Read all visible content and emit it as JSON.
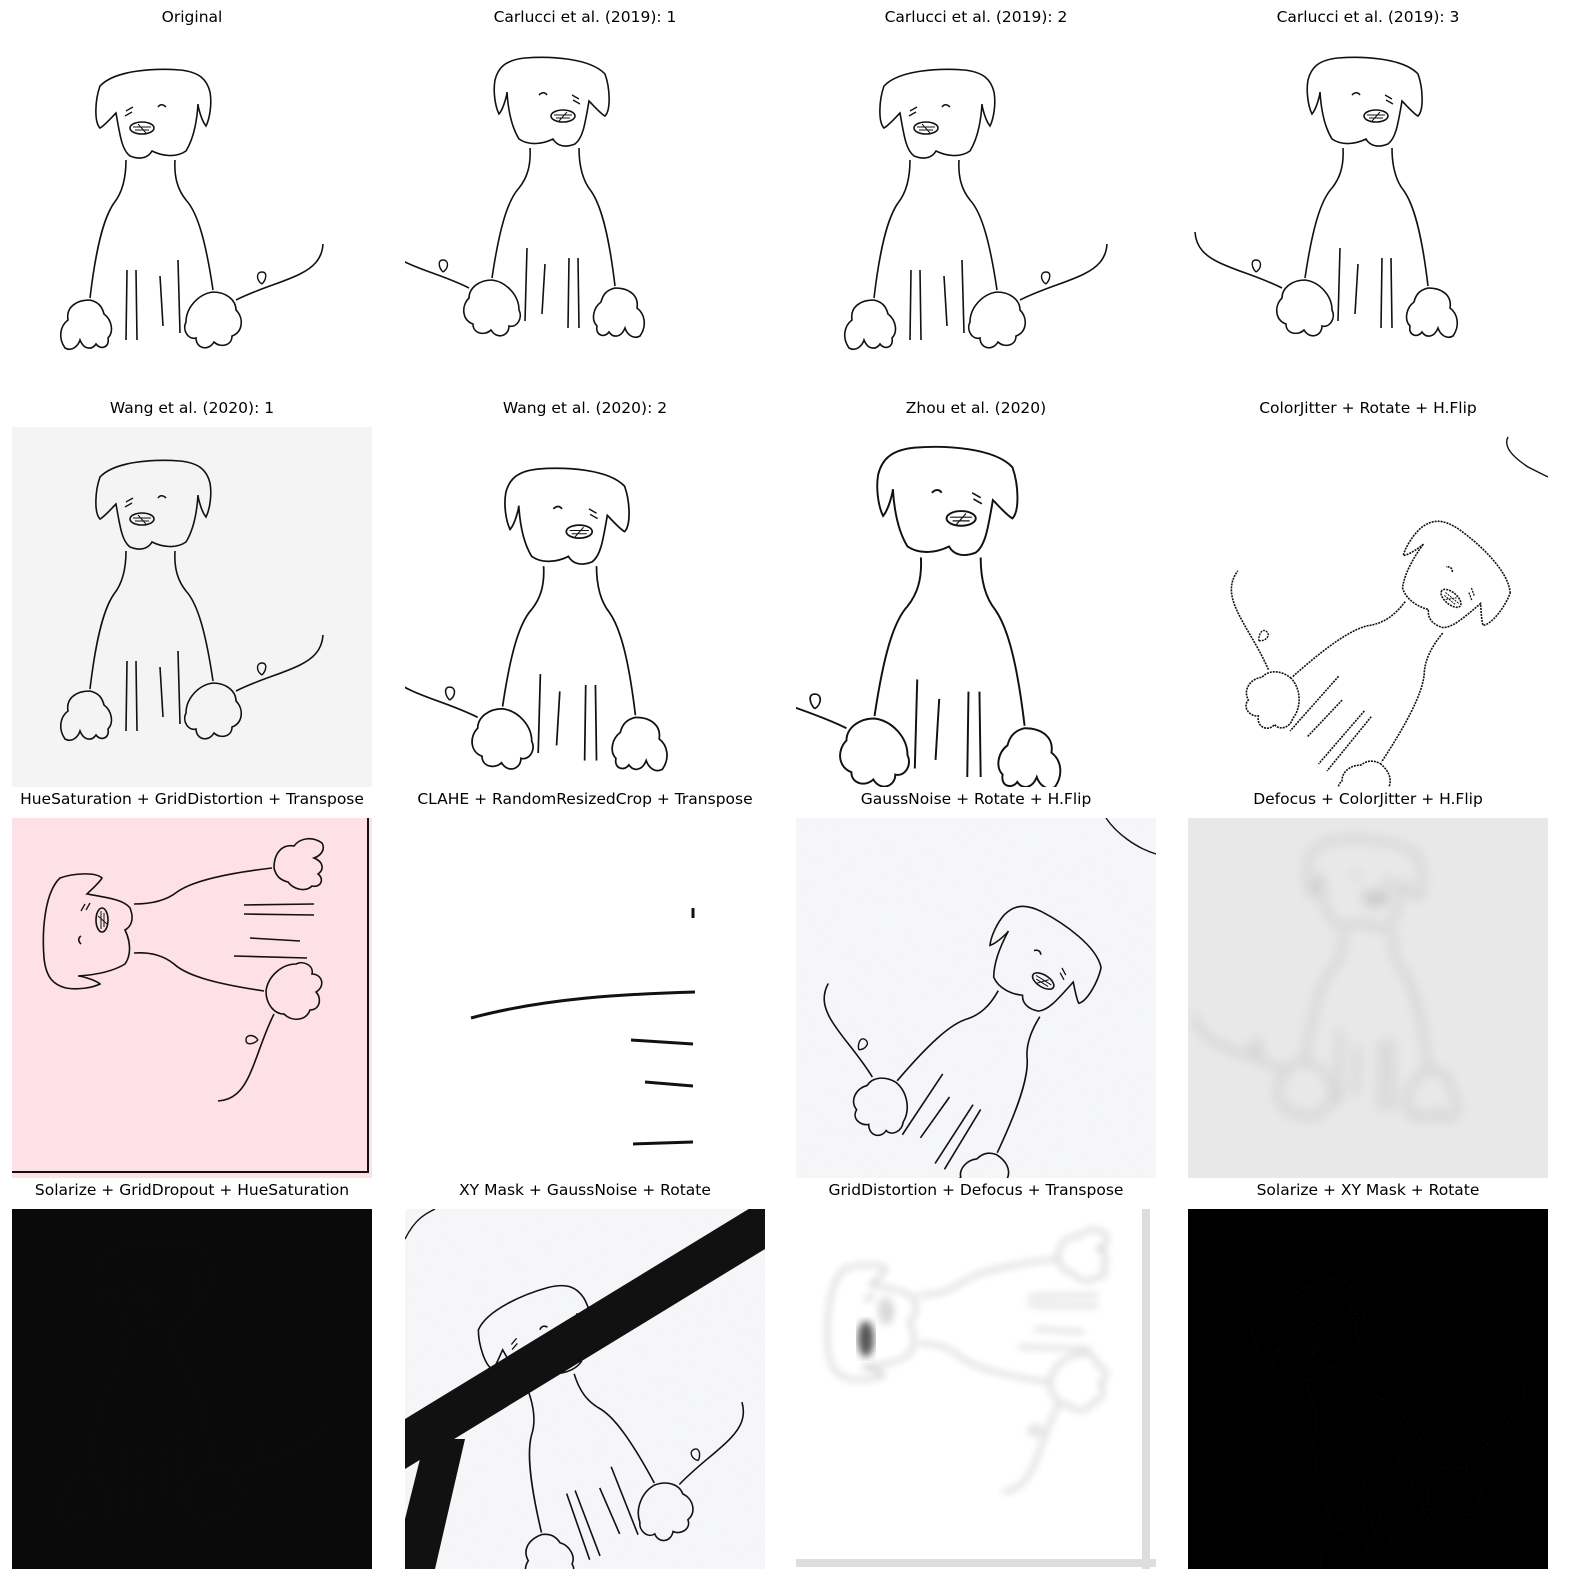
{
  "figure": {
    "panels": [
      {
        "title": "Original",
        "name": "original"
      },
      {
        "title": "Carlucci et al. (2019): 1",
        "name": "carlucci-1"
      },
      {
        "title": "Carlucci et al. (2019): 2",
        "name": "carlucci-2"
      },
      {
        "title": "Carlucci et al. (2019): 3",
        "name": "carlucci-3"
      },
      {
        "title": "Wang et al. (2020): 1",
        "name": "wang-1"
      },
      {
        "title": "Wang et al. (2020): 2",
        "name": "wang-2"
      },
      {
        "title": "Zhou et al. (2020)",
        "name": "zhou"
      },
      {
        "title": "ColorJitter + Rotate + H.Flip",
        "name": "colorjitter-rotate-hflip"
      },
      {
        "title": "HueSaturation + GridDistortion + Transpose",
        "name": "huesat-griddistortion-transpose"
      },
      {
        "title": "CLAHE + RandomResizedCrop + Transpose",
        "name": "clahe-randomresizedcrop-transpose"
      },
      {
        "title": "GaussNoise + Rotate + H.Flip",
        "name": "gaussnoise-rotate-hflip"
      },
      {
        "title": "Defocus + ColorJitter + H.Flip",
        "name": "defocus-colorjitter-hflip"
      },
      {
        "title": "Solarize + GridDropout + HueSaturation",
        "name": "solarize-griddropout-huesat"
      },
      {
        "title": "XY Mask + GaussNoise + Rotate",
        "name": "xymask-gaussnoise-rotate"
      },
      {
        "title": "GridDistortion + Defocus + Transpose",
        "name": "griddistortion-defocus-transpose"
      },
      {
        "title": "Solarize + XY Mask + Rotate",
        "name": "solarize-xymask-rotate"
      }
    ],
    "colors": {
      "stroke": "#111111",
      "pink_background": "#fde1e6",
      "gray_background": "#f4f4f4",
      "defocus_background": "#e8e8e8",
      "solarize_background": "#0a0a0a"
    }
  }
}
